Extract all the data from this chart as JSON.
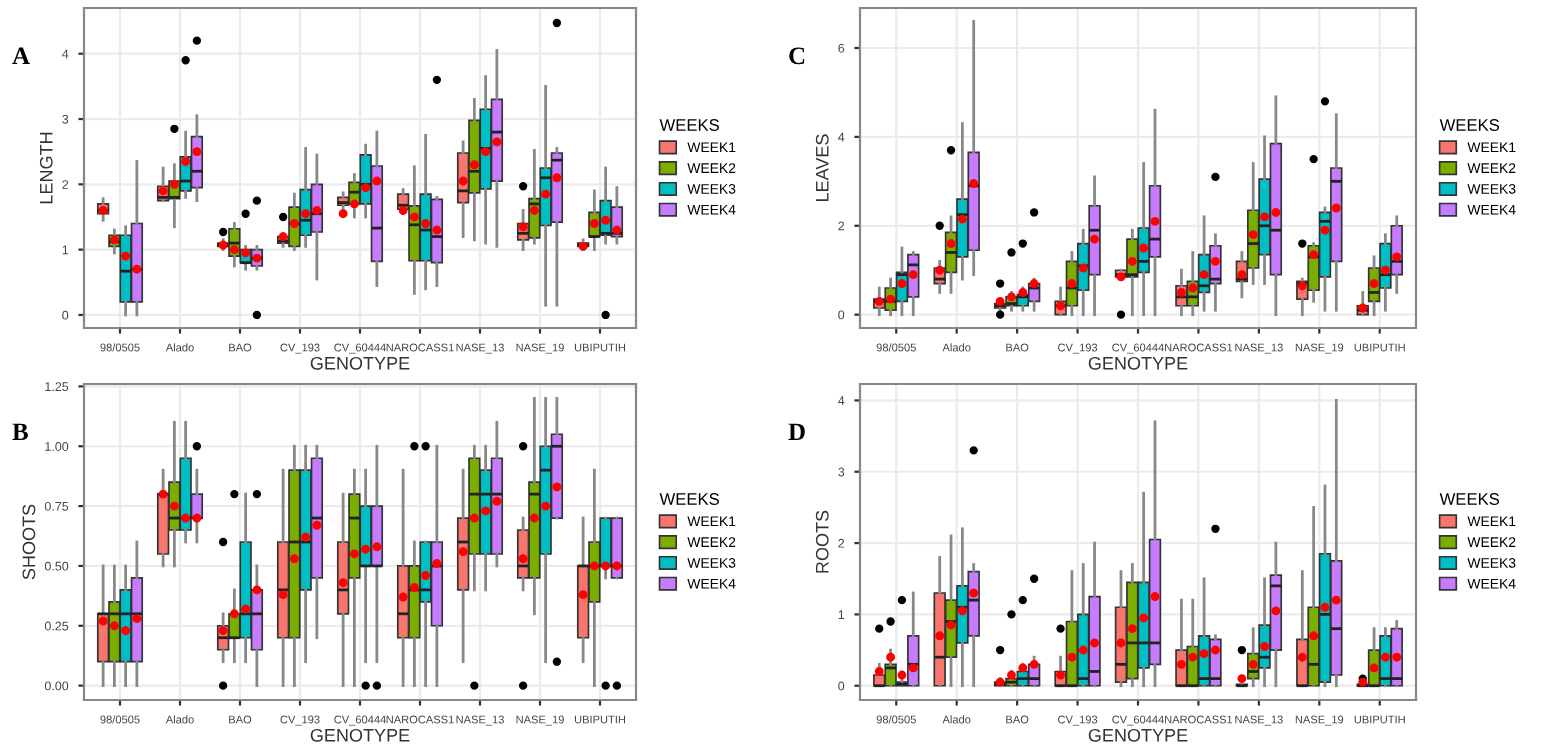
{
  "chart_data": [
    {
      "type": "box",
      "title": "A",
      "xlabel": "GENOTYPE",
      "ylabel": "LENGTH",
      "legend_title": "WEEKS",
      "legend": "right",
      "grid": true,
      "ylim": [
        -0.2,
        4.7
      ],
      "yticks": [
        0,
        1,
        2,
        3,
        4
      ],
      "categories": [
        "98/0505",
        "Alado",
        "BAO",
        "CV_193",
        "CV_60444",
        "NAROCASS1",
        "NASE_13",
        "NASE_19",
        "UBIPUTIH"
      ],
      "series": [
        {
          "name": "WEEK1",
          "color": "#f8766d",
          "boxes": [
            {
              "low": 1.45,
              "q1": 1.55,
              "median": 1.6,
              "q3": 1.7,
              "high": 1.78,
              "mean": 1.6
            },
            {
              "low": 1.75,
              "q1": 1.75,
              "median": 1.8,
              "q3": 1.97,
              "high": 2.25,
              "mean": 1.9
            },
            {
              "low": 1.0,
              "q1": 1.05,
              "median": 1.07,
              "q3": 1.1,
              "high": 1.15,
              "mean": 1.07,
              "outliers": [
                1.27
              ]
            },
            {
              "low": 1.05,
              "q1": 1.1,
              "median": 1.13,
              "q3": 1.2,
              "high": 1.25,
              "mean": 1.2,
              "outliers": [
                1.5
              ]
            },
            {
              "low": 1.58,
              "q1": 1.68,
              "median": 1.72,
              "q3": 1.8,
              "high": 1.87,
              "mean": 1.55
            },
            {
              "low": 1.55,
              "q1": 1.62,
              "median": 1.68,
              "q3": 1.85,
              "high": 1.92,
              "mean": 1.6
            },
            {
              "low": 1.2,
              "q1": 1.72,
              "median": 1.9,
              "q3": 2.48,
              "high": 2.65,
              "mean": 2.05
            },
            {
              "low": 1.0,
              "q1": 1.15,
              "median": 1.25,
              "q3": 1.4,
              "high": 1.6,
              "mean": 1.35,
              "outliers": [
                1.97
              ]
            },
            {
              "low": 1.0,
              "q1": 1.05,
              "median": 1.07,
              "q3": 1.1,
              "high": 1.15,
              "mean": 1.05
            }
          ]
        },
        {
          "name": "WEEK2",
          "color": "#7cae00",
          "boxes": [
            {
              "low": 0.95,
              "q1": 1.05,
              "median": 1.12,
              "q3": 1.22,
              "high": 1.3,
              "mean": 1.15
            },
            {
              "low": 1.35,
              "q1": 1.78,
              "median": 1.8,
              "q3": 2.05,
              "high": 2.3,
              "mean": 2.0,
              "outliers": [
                2.85
              ]
            },
            {
              "low": 0.75,
              "q1": 0.9,
              "median": 1.1,
              "q3": 1.32,
              "high": 1.4,
              "mean": 1.0
            },
            {
              "low": 1.0,
              "q1": 1.05,
              "median": 1.4,
              "q3": 1.65,
              "high": 1.85,
              "mean": 1.4
            },
            {
              "low": 1.5,
              "q1": 1.7,
              "median": 1.88,
              "q3": 2.03,
              "high": 2.15,
              "mean": 1.7
            },
            {
              "low": 0.33,
              "q1": 0.83,
              "median": 1.38,
              "q3": 1.67,
              "high": 2.27,
              "mean": 1.5
            },
            {
              "low": 1.15,
              "q1": 1.87,
              "median": 2.2,
              "q3": 2.98,
              "high": 3.3,
              "mean": 2.3
            },
            {
              "low": 1.1,
              "q1": 1.18,
              "median": 1.7,
              "q3": 1.78,
              "high": 2.52,
              "mean": 1.6
            },
            {
              "low": 1.0,
              "q1": 1.2,
              "median": 1.2,
              "q3": 1.57,
              "high": 1.9,
              "mean": 1.4
            }
          ]
        },
        {
          "name": "WEEK3",
          "color": "#00bfc4",
          "boxes": [
            {
              "low": 0,
              "q1": 0.2,
              "median": 0.67,
              "q3": 1.22,
              "high": 1.35,
              "mean": 0.9
            },
            {
              "low": 1.8,
              "q1": 1.9,
              "median": 2.05,
              "q3": 2.42,
              "high": 2.8,
              "mean": 2.35,
              "outliers": [
                3.9
              ]
            },
            {
              "low": 0.7,
              "q1": 0.8,
              "median": 0.8,
              "q3": 1.0,
              "high": 1.05,
              "mean": 0.95,
              "outliers": [
                1.55
              ]
            },
            {
              "low": 1.05,
              "q1": 1.22,
              "median": 1.45,
              "q3": 1.92,
              "high": 2.55,
              "mean": 1.55
            },
            {
              "low": 1.5,
              "q1": 1.7,
              "median": 2.0,
              "q3": 2.45,
              "high": 2.6,
              "mean": 1.95
            },
            {
              "low": 0.4,
              "q1": 0.83,
              "median": 1.3,
              "q3": 1.85,
              "high": 2.75,
              "mean": 1.4
            },
            {
              "low": 1.1,
              "q1": 1.93,
              "median": 2.55,
              "q3": 3.15,
              "high": 3.65,
              "mean": 2.5
            },
            {
              "low": 0.15,
              "q1": 1.37,
              "median": 2.1,
              "q3": 2.25,
              "high": 3.5,
              "mean": 1.85
            },
            {
              "low": 1.1,
              "q1": 1.22,
              "median": 1.25,
              "q3": 1.75,
              "high": 2.25,
              "mean": 1.45,
              "outliers": [
                0
              ]
            }
          ]
        },
        {
          "name": "WEEK4",
          "color": "#c77cff",
          "boxes": [
            {
              "low": 0,
              "q1": 0.2,
              "median": 0.7,
              "q3": 1.4,
              "high": 2.35,
              "mean": 0.7
            },
            {
              "low": 1.75,
              "q1": 1.95,
              "median": 2.2,
              "q3": 2.73,
              "high": 3.05,
              "mean": 2.5,
              "outliers": [
                4.2
              ]
            },
            {
              "low": 0.7,
              "q1": 0.75,
              "median": 0.87,
              "q3": 1.0,
              "high": 1.05,
              "mean": 0.87,
              "outliers": [
                1.75,
                0
              ]
            },
            {
              "low": 0.55,
              "q1": 1.27,
              "median": 1.55,
              "q3": 2.0,
              "high": 2.45,
              "mean": 1.6
            },
            {
              "low": 0.45,
              "q1": 0.82,
              "median": 1.33,
              "q3": 2.28,
              "high": 2.8,
              "mean": 2.05
            },
            {
              "low": 0.45,
              "q1": 0.8,
              "median": 1.2,
              "q3": 1.77,
              "high": 1.8,
              "mean": 1.3,
              "outliers": [
                3.6
              ]
            },
            {
              "low": 1.05,
              "q1": 2.05,
              "median": 2.8,
              "q3": 3.3,
              "high": 4.05,
              "mean": 2.65
            },
            {
              "low": 0.15,
              "q1": 1.42,
              "median": 2.37,
              "q3": 2.48,
              "high": 2.55,
              "mean": 2.1,
              "outliers": [
                4.47
              ]
            },
            {
              "low": 1.1,
              "q1": 1.2,
              "median": 1.25,
              "q3": 1.65,
              "high": 1.95,
              "mean": 1.3
            }
          ]
        }
      ]
    },
    {
      "type": "box",
      "title": "B",
      "xlabel": "GENOTYPE",
      "ylabel": "SHOOTS",
      "legend_title": "WEEKS",
      "legend": "right",
      "grid": true,
      "ylim": [
        -0.06,
        1.26
      ],
      "yticks": [
        {
          "value": 0,
          "label": "0.00"
        },
        {
          "value": 0.25,
          "label": "0.25"
        },
        {
          "value": 0.5,
          "label": "0.50"
        },
        {
          "value": 0.75,
          "label": "0.75"
        },
        {
          "value": 1,
          "label": "1.00"
        },
        {
          "value": 1.25,
          "label": "1.25"
        }
      ],
      "categories": [
        "98/0505",
        "Alado",
        "BAO",
        "CV_193",
        "CV_60444",
        "NAROCASS1",
        "NASE_13",
        "NASE_19",
        "UBIPUTIH"
      ],
      "series": [
        {
          "name": "WEEK1",
          "color": "#f8766d",
          "boxes": [
            {
              "low": 0,
              "q1": 0.1,
              "median": 0.3,
              "q3": 0.3,
              "high": 0.5,
              "mean": 0.27
            },
            {
              "low": 0.5,
              "q1": 0.55,
              "median": 0.8,
              "q3": 0.8,
              "high": 0.9,
              "mean": 0.8
            },
            {
              "low": 0.1,
              "q1": 0.15,
              "median": 0.2,
              "q3": 0.25,
              "high": 0.3,
              "mean": 0.23,
              "outliers": [
                0.6,
                0
              ]
            },
            {
              "low": 0,
              "q1": 0.2,
              "median": 0.4,
              "q3": 0.6,
              "high": 0.9,
              "mean": 0.38
            },
            {
              "low": 0,
              "q1": 0.3,
              "median": 0.4,
              "q3": 0.6,
              "high": 0.8,
              "mean": 0.43
            },
            {
              "low": 0,
              "q1": 0.2,
              "median": 0.3,
              "q3": 0.5,
              "high": 0.9,
              "mean": 0.37
            },
            {
              "low": 0.1,
              "q1": 0.4,
              "median": 0.6,
              "q3": 0.7,
              "high": 0.9,
              "mean": 0.56
            },
            {
              "low": 0.4,
              "q1": 0.45,
              "median": 0.5,
              "q3": 0.65,
              "high": 0.7,
              "mean": 0.53,
              "outliers": [
                1.0,
                0
              ]
            },
            {
              "low": 0.1,
              "q1": 0.2,
              "median": 0.5,
              "q3": 0.5,
              "high": 0.7,
              "mean": 0.38
            }
          ]
        },
        {
          "name": "WEEK2",
          "color": "#7cae00",
          "boxes": [
            {
              "low": 0,
              "q1": 0.1,
              "median": 0.3,
              "q3": 0.35,
              "high": 0.5,
              "mean": 0.25
            },
            {
              "low": 0.5,
              "q1": 0.65,
              "median": 0.7,
              "q3": 0.85,
              "high": 1.1,
              "mean": 0.75
            },
            {
              "low": 0.1,
              "q1": 0.2,
              "median": 0.2,
              "q3": 0.3,
              "high": 0.4,
              "mean": 0.3,
              "outliers": [
                0.8
              ]
            },
            {
              "low": 0,
              "q1": 0.2,
              "median": 0.6,
              "q3": 0.9,
              "high": 1.0,
              "mean": 0.53
            },
            {
              "low": 0,
              "q1": 0.45,
              "median": 0.7,
              "q3": 0.8,
              "high": 0.9,
              "mean": 0.55
            },
            {
              "low": 0,
              "q1": 0.2,
              "median": 0.4,
              "q3": 0.5,
              "high": 0.6,
              "mean": 0.41,
              "outliers": [
                1.0
              ]
            },
            {
              "low": 0.4,
              "q1": 0.55,
              "median": 0.8,
              "q3": 0.95,
              "high": 1.0,
              "mean": 0.7,
              "outliers": [
                0
              ]
            },
            {
              "low": 0.3,
              "q1": 0.45,
              "median": 0.8,
              "q3": 0.85,
              "high": 1.2,
              "mean": 0.7
            },
            {
              "low": 0,
              "q1": 0.35,
              "median": 0.5,
              "q3": 0.6,
              "high": 0.9,
              "mean": 0.5
            }
          ]
        },
        {
          "name": "WEEK3",
          "color": "#00bfc4",
          "boxes": [
            {
              "low": 0,
              "q1": 0.1,
              "median": 0.3,
              "q3": 0.4,
              "high": 0.5,
              "mean": 0.23
            },
            {
              "low": 0.6,
              "q1": 0.65,
              "median": 0.7,
              "q3": 0.95,
              "high": 1.1,
              "mean": 0.7
            },
            {
              "low": 0.1,
              "q1": 0.2,
              "median": 0.3,
              "q3": 0.6,
              "high": 0.8,
              "mean": 0.32
            },
            {
              "low": 0.1,
              "q1": 0.4,
              "median": 0.6,
              "q3": 0.9,
              "high": 1.0,
              "mean": 0.62
            },
            {
              "low": 0.1,
              "q1": 0.5,
              "median": 0.5,
              "q3": 0.75,
              "high": 0.9,
              "mean": 0.57,
              "outliers": [
                0
              ]
            },
            {
              "low": 0,
              "q1": 0.35,
              "median": 0.4,
              "q3": 0.6,
              "high": 0.6,
              "mean": 0.46,
              "outliers": [
                1.0
              ]
            },
            {
              "low": 0.4,
              "q1": 0.55,
              "median": 0.8,
              "q3": 0.9,
              "high": 1.0,
              "mean": 0.73
            },
            {
              "low": 0.1,
              "q1": 0.55,
              "median": 0.9,
              "q3": 1.0,
              "high": 1.2,
              "mean": 0.75
            },
            {
              "low": 0.45,
              "q1": 0.5,
              "median": 0.5,
              "q3": 0.7,
              "high": 0.7,
              "mean": 0.5,
              "outliers": [
                0
              ]
            }
          ]
        },
        {
          "name": "WEEK4",
          "color": "#c77cff",
          "boxes": [
            {
              "low": 0,
              "q1": 0.1,
              "median": 0.3,
              "q3": 0.45,
              "high": 0.6,
              "mean": 0.28
            },
            {
              "low": 0.6,
              "q1": 0.7,
              "median": 0.7,
              "q3": 0.8,
              "high": 0.9,
              "mean": 0.7,
              "outliers": [
                1.0
              ]
            },
            {
              "low": 0,
              "q1": 0.15,
              "median": 0.3,
              "q3": 0.4,
              "high": 0.5,
              "mean": 0.4,
              "outliers": [
                0.8
              ]
            },
            {
              "low": 0.2,
              "q1": 0.45,
              "median": 0.7,
              "q3": 0.95,
              "high": 1.0,
              "mean": 0.67
            },
            {
              "low": 0.1,
              "q1": 0.5,
              "median": 0.5,
              "q3": 0.75,
              "high": 1.0,
              "mean": 0.58,
              "outliers": [
                0
              ]
            },
            {
              "low": 0,
              "q1": 0.25,
              "median": 0.5,
              "q3": 0.6,
              "high": 1.0,
              "mean": 0.51
            },
            {
              "low": 0.5,
              "q1": 0.55,
              "median": 0.8,
              "q3": 0.95,
              "high": 1.1,
              "mean": 0.77
            },
            {
              "low": 0.7,
              "q1": 0.7,
              "median": 1.0,
              "q3": 1.05,
              "high": 1.2,
              "mean": 0.83,
              "outliers": [
                0.1
              ]
            },
            {
              "low": 0.45,
              "q1": 0.45,
              "median": 0.5,
              "q3": 0.7,
              "high": 0.7,
              "mean": 0.5,
              "outliers": [
                0
              ]
            }
          ]
        }
      ]
    },
    {
      "type": "box",
      "title": "C",
      "xlabel": "GENOTYPE",
      "ylabel": "LEAVES",
      "legend_title": "WEEKS",
      "legend": "right",
      "grid": true,
      "ylim": [
        -0.3,
        6.9
      ],
      "yticks": [
        0,
        2,
        4,
        6
      ],
      "categories": [
        "98/0505",
        "Alado",
        "BAO",
        "CV_193",
        "CV_60444",
        "NAROCASS1",
        "NASE_13",
        "NASE_19",
        "UBIPUTIH"
      ],
      "series": [
        {
          "name": "WEEK1",
          "color": "#f8766d",
          "boxes": [
            {
              "low": 0,
              "q1": 0.15,
              "median": 0.3,
              "q3": 0.35,
              "high": 0.6,
              "mean": 0.3
            },
            {
              "low": 0.5,
              "q1": 0.7,
              "median": 0.8,
              "q3": 1.05,
              "high": 1.2,
              "mean": 1.0,
              "outliers": [
                2.0
              ]
            },
            {
              "low": 0.1,
              "q1": 0.15,
              "median": 0.2,
              "q3": 0.25,
              "high": 0.3,
              "mean": 0.3,
              "outliers": [
                0.7,
                0
              ]
            },
            {
              "low": 0,
              "q1": 0,
              "median": 0.2,
              "q3": 0.3,
              "high": 0.6,
              "mean": 0.2
            },
            {
              "low": 0.8,
              "q1": 0.85,
              "median": 0.9,
              "q3": 1.0,
              "high": 1.0,
              "mean": 0.85,
              "outliers": [
                0
              ]
            },
            {
              "low": 0,
              "q1": 0.2,
              "median": 0.4,
              "q3": 0.65,
              "high": 1.0,
              "mean": 0.5
            },
            {
              "low": 0.4,
              "q1": 0.75,
              "median": 0.8,
              "q3": 1.2,
              "high": 1.4,
              "mean": 0.9
            },
            {
              "low": 0,
              "q1": 0.35,
              "median": 0.7,
              "q3": 0.75,
              "high": 0.8,
              "mean": 0.65,
              "outliers": [
                1.6
              ]
            },
            {
              "low": 0,
              "q1": 0,
              "median": 0.1,
              "q3": 0.2,
              "high": 0.5,
              "mean": 0.15
            }
          ]
        },
        {
          "name": "WEEK2",
          "color": "#7cae00",
          "boxes": [
            {
              "low": 0,
              "q1": 0.1,
              "median": 0.3,
              "q3": 0.6,
              "high": 0.8,
              "mean": 0.35
            },
            {
              "low": 0.5,
              "q1": 0.95,
              "median": 1.4,
              "q3": 1.85,
              "high": 2.2,
              "mean": 1.6,
              "outliers": [
                3.7
              ]
            },
            {
              "low": 0.1,
              "q1": 0.2,
              "median": 0.25,
              "q3": 0.4,
              "high": 0.5,
              "mean": 0.4,
              "outliers": [
                1.4
              ]
            },
            {
              "low": 0,
              "q1": 0.2,
              "median": 0.6,
              "q3": 1.2,
              "high": 1.4,
              "mean": 0.7
            },
            {
              "low": 0,
              "q1": 0.85,
              "median": 0.9,
              "q3": 1.7,
              "high": 1.9,
              "mean": 1.2
            },
            {
              "low": 0,
              "q1": 0.2,
              "median": 0.4,
              "q3": 0.75,
              "high": 1.4,
              "mean": 0.6
            },
            {
              "low": 0.7,
              "q1": 1.05,
              "median": 1.6,
              "q3": 2.35,
              "high": 3.4,
              "mean": 1.8
            },
            {
              "low": 0.3,
              "q1": 0.55,
              "median": 1.3,
              "q3": 1.55,
              "high": 1.6,
              "mean": 1.35,
              "outliers": [
                3.5
              ]
            },
            {
              "low": 0,
              "q1": 0.3,
              "median": 0.5,
              "q3": 1.05,
              "high": 1.3,
              "mean": 0.7
            }
          ]
        },
        {
          "name": "WEEK3",
          "color": "#00bfc4",
          "boxes": [
            {
              "low": 0,
              "q1": 0.3,
              "median": 0.9,
              "q3": 0.95,
              "high": 1.5,
              "mean": 0.7
            },
            {
              "low": 0.8,
              "q1": 1.3,
              "median": 2.25,
              "q3": 2.6,
              "high": 4.3,
              "mean": 2.15
            },
            {
              "low": 0.1,
              "q1": 0.2,
              "median": 0.4,
              "q3": 0.45,
              "high": 0.6,
              "mean": 0.5,
              "outliers": [
                1.6
              ]
            },
            {
              "low": 0,
              "q1": 0.55,
              "median": 1.1,
              "q3": 1.6,
              "high": 1.9,
              "mean": 1.05
            },
            {
              "low": 0,
              "q1": 0.95,
              "median": 1.2,
              "q3": 1.95,
              "high": 3.4,
              "mean": 1.5
            },
            {
              "low": 0.1,
              "q1": 0.5,
              "median": 0.65,
              "q3": 1.35,
              "high": 2.2,
              "mean": 0.9
            },
            {
              "low": 0.7,
              "q1": 1.35,
              "median": 2.0,
              "q3": 3.05,
              "high": 4.0,
              "mean": 2.2
            },
            {
              "low": 0.1,
              "q1": 0.85,
              "median": 2.1,
              "q3": 2.3,
              "high": 2.4,
              "mean": 1.9,
              "outliers": [
                4.8
              ]
            },
            {
              "low": 0.1,
              "q1": 0.6,
              "median": 0.9,
              "q3": 1.6,
              "high": 1.8,
              "mean": 1.0
            }
          ]
        },
        {
          "name": "WEEK4",
          "color": "#c77cff",
          "boxes": [
            {
              "low": 0,
              "q1": 0.4,
              "median": 1.12,
              "q3": 1.35,
              "high": 1.4,
              "mean": 0.9
            },
            {
              "low": 0.9,
              "q1": 1.45,
              "median": 2.9,
              "q3": 3.65,
              "high": 6.6,
              "mean": 2.95
            },
            {
              "low": 0.1,
              "q1": 0.3,
              "median": 0.6,
              "q3": 0.7,
              "high": 0.8,
              "mean": 0.7,
              "outliers": [
                2.3
              ]
            },
            {
              "low": 0,
              "q1": 0.9,
              "median": 1.9,
              "q3": 2.45,
              "high": 3.1,
              "mean": 1.7
            },
            {
              "low": 0,
              "q1": 1.3,
              "median": 1.7,
              "q3": 2.9,
              "high": 4.6,
              "mean": 2.1
            },
            {
              "low": 0.1,
              "q1": 0.7,
              "median": 0.8,
              "q3": 1.55,
              "high": 1.8,
              "mean": 1.2,
              "outliers": [
                3.1
              ]
            },
            {
              "low": 0,
              "q1": 0.9,
              "median": 1.9,
              "q3": 3.85,
              "high": 4.9,
              "mean": 2.3
            },
            {
              "low": 0.1,
              "q1": 1.2,
              "median": 3.0,
              "q3": 3.3,
              "high": 4.5,
              "mean": 2.4
            },
            {
              "low": 0.5,
              "q1": 0.9,
              "median": 1.2,
              "q3": 2.0,
              "high": 2.2,
              "mean": 1.3
            }
          ]
        }
      ]
    },
    {
      "type": "box",
      "title": "D",
      "xlabel": "GENOTYPE",
      "ylabel": "ROOTS",
      "legend_title": "WEEKS",
      "legend": "right",
      "grid": true,
      "ylim": [
        -0.2,
        4.23
      ],
      "yticks": [
        0,
        1,
        2,
        3,
        4
      ],
      "categories": [
        "98/0505",
        "Alado",
        "BAO",
        "CV_193",
        "CV_60444",
        "NAROCASS1",
        "NASE_13",
        "NASE_19",
        "UBIPUTIH"
      ],
      "series": [
        {
          "name": "WEEK1",
          "color": "#f8766d",
          "boxes": [
            {
              "low": 0,
              "q1": 0,
              "median": 0,
              "q3": 0.15,
              "high": 0.3,
              "mean": 0.2,
              "outliers": [
                0.8
              ]
            },
            {
              "low": 0,
              "q1": 0,
              "median": 0.4,
              "q3": 1.3,
              "high": 1.8,
              "mean": 0.7
            },
            {
              "low": 0,
              "q1": 0,
              "median": 0.02,
              "q3": 0.05,
              "high": 0.1,
              "mean": 0.05,
              "outliers": [
                0.5
              ]
            },
            {
              "low": 0,
              "q1": 0,
              "median": 0,
              "q3": 0.2,
              "high": 0.4,
              "mean": 0.15,
              "outliers": [
                0.8
              ]
            },
            {
              "low": 0,
              "q1": 0.05,
              "median": 0.3,
              "q3": 1.1,
              "high": 1.6,
              "mean": 0.6
            },
            {
              "low": 0,
              "q1": 0,
              "median": 0,
              "q3": 0.5,
              "high": 1.2,
              "mean": 0.3
            },
            {
              "low": 0,
              "q1": 0,
              "median": 0,
              "q3": 0.02,
              "high": 0.02,
              "mean": 0.1,
              "outliers": [
                0.5
              ]
            },
            {
              "low": 0,
              "q1": 0,
              "median": 0,
              "q3": 0.65,
              "high": 1.6,
              "mean": 0.4
            },
            {
              "low": 0,
              "q1": 0,
              "median": 0,
              "q3": 0.02,
              "high": 0.02,
              "mean": 0.05,
              "outliers": [
                0.1
              ]
            }
          ]
        },
        {
          "name": "WEEK2",
          "color": "#7cae00",
          "boxes": [
            {
              "low": 0,
              "q1": 0,
              "median": 0.25,
              "q3": 0.3,
              "high": 0.5,
              "mean": 0.4,
              "outliers": [
                0.9
              ]
            },
            {
              "low": 0,
              "q1": 0.4,
              "median": 0.9,
              "q3": 1.2,
              "high": 2.1,
              "mean": 0.85
            },
            {
              "low": 0,
              "q1": 0,
              "median": 0.05,
              "q3": 0.1,
              "high": 0.2,
              "mean": 0.15,
              "outliers": [
                1.0
              ]
            },
            {
              "low": 0,
              "q1": 0,
              "median": 0,
              "q3": 0.9,
              "high": 1.6,
              "mean": 0.4
            },
            {
              "low": 0,
              "q1": 0.1,
              "median": 0.6,
              "q3": 1.45,
              "high": 1.7,
              "mean": 0.8
            },
            {
              "low": 0,
              "q1": 0,
              "median": 0,
              "q3": 0.55,
              "high": 1.2,
              "mean": 0.4
            },
            {
              "low": 0,
              "q1": 0.1,
              "median": 0.2,
              "q3": 0.45,
              "high": 0.8,
              "mean": 0.3
            },
            {
              "low": 0,
              "q1": 0,
              "median": 0.3,
              "q3": 1.1,
              "high": 2.5,
              "mean": 0.7
            },
            {
              "low": 0,
              "q1": 0,
              "median": 0,
              "q3": 0.5,
              "high": 0.8,
              "mean": 0.25
            }
          ]
        },
        {
          "name": "WEEK3",
          "color": "#00bfc4",
          "boxes": [
            {
              "low": 0,
              "q1": 0,
              "median": 0.02,
              "q3": 0.05,
              "high": 0.1,
              "mean": 0.15,
              "outliers": [
                1.2
              ]
            },
            {
              "low": 0,
              "q1": 0.6,
              "median": 1.1,
              "q3": 1.4,
              "high": 2.2,
              "mean": 1.05
            },
            {
              "low": 0,
              "q1": 0,
              "median": 0.1,
              "q3": 0.2,
              "high": 0.3,
              "mean": 0.25,
              "outliers": [
                1.2
              ]
            },
            {
              "low": 0,
              "q1": 0,
              "median": 0.1,
              "q3": 1.0,
              "high": 1.7,
              "mean": 0.5
            },
            {
              "low": 0,
              "q1": 0.25,
              "median": 0.6,
              "q3": 1.45,
              "high": 2.7,
              "mean": 0.95
            },
            {
              "low": 0,
              "q1": 0,
              "median": 0.1,
              "q3": 0.7,
              "high": 1.5,
              "mean": 0.45
            },
            {
              "low": 0,
              "q1": 0.25,
              "median": 0.4,
              "q3": 0.85,
              "high": 1.5,
              "mean": 0.55
            },
            {
              "low": 0,
              "q1": 0.05,
              "median": 1.0,
              "q3": 1.85,
              "high": 2.8,
              "mean": 1.1
            },
            {
              "low": 0,
              "q1": 0,
              "median": 0.1,
              "q3": 0.7,
              "high": 0.8,
              "mean": 0.4
            }
          ]
        },
        {
          "name": "WEEK4",
          "color": "#c77cff",
          "boxes": [
            {
              "low": 0,
              "q1": 0,
              "median": 0.3,
              "q3": 0.7,
              "high": 1.3,
              "mean": 0.25
            },
            {
              "low": 0,
              "q1": 0.7,
              "median": 1.2,
              "q3": 1.6,
              "high": 1.7,
              "mean": 1.3,
              "outliers": [
                3.3
              ]
            },
            {
              "low": 0,
              "q1": 0,
              "median": 0.1,
              "q3": 0.3,
              "high": 0.4,
              "mean": 0.3,
              "outliers": [
                1.5
              ]
            },
            {
              "low": 0,
              "q1": 0,
              "median": 0.2,
              "q3": 1.25,
              "high": 2.0,
              "mean": 0.6
            },
            {
              "low": 0,
              "q1": 0.3,
              "median": 0.6,
              "q3": 2.05,
              "high": 3.7,
              "mean": 1.25
            },
            {
              "low": 0,
              "q1": 0,
              "median": 0.1,
              "q3": 0.65,
              "high": 0.7,
              "mean": 0.5,
              "outliers": [
                2.2
              ]
            },
            {
              "low": 0,
              "q1": 0.5,
              "median": 1.4,
              "q3": 1.55,
              "high": 2.0,
              "mean": 1.05
            },
            {
              "low": 0,
              "q1": 0.15,
              "median": 0.8,
              "q3": 1.75,
              "high": 4.0,
              "mean": 1.2
            },
            {
              "low": 0,
              "q1": 0,
              "median": 0.1,
              "q3": 0.8,
              "high": 0.9,
              "mean": 0.4
            }
          ]
        }
      ]
    }
  ]
}
